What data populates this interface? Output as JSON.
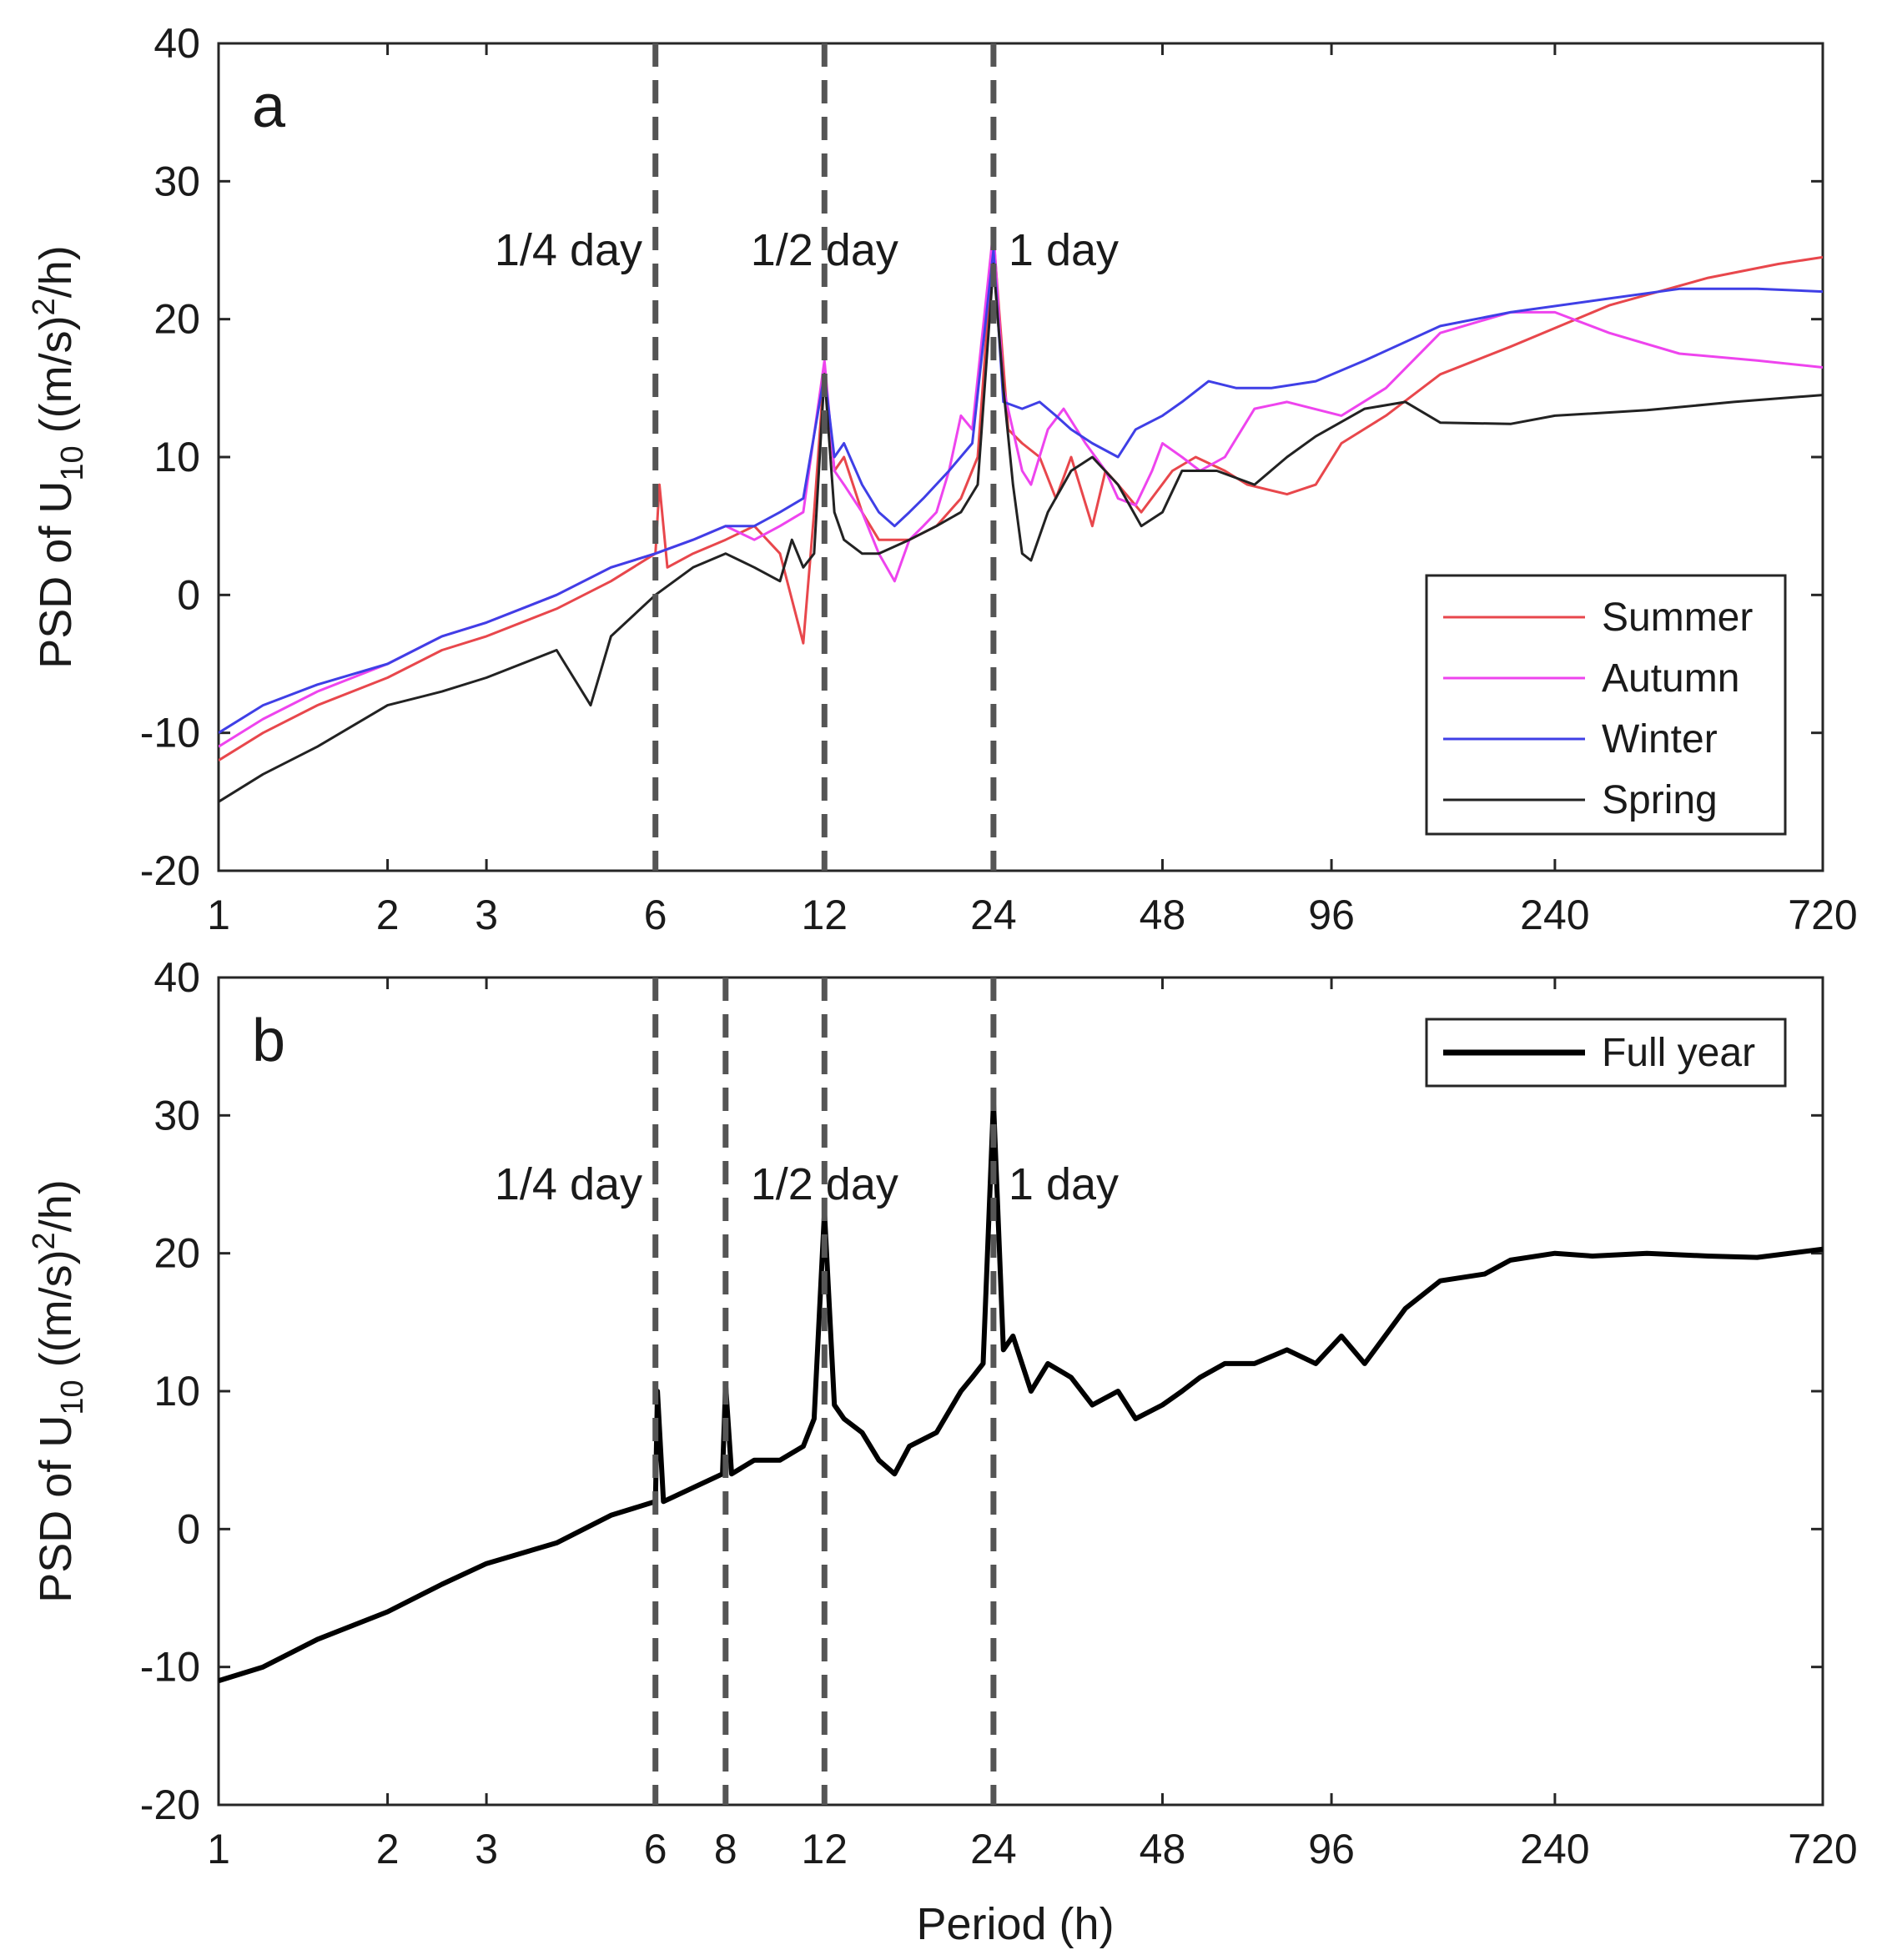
{
  "figure": {
    "xlabel": "Period (h)",
    "ylabel_main": "PSD of U",
    "ylabel_sub": "10",
    "ylabel_mid": " ((m/s)",
    "ylabel_sup": "2",
    "ylabel_end": "/h)"
  },
  "chart_data": [
    {
      "type": "line",
      "panel_label": "a",
      "x_scale": "log",
      "xlim": [
        1,
        720
      ],
      "ylim": [
        -20,
        40
      ],
      "xticks": [
        1,
        2,
        3,
        6,
        12,
        24,
        48,
        96,
        240,
        720
      ],
      "yticks": [
        -20,
        -10,
        0,
        10,
        20,
        30,
        40
      ],
      "xlabel": "Period (h)",
      "ylabel": "PSD of U10 ((m/s)^2/h)",
      "legend_position": "lower-right",
      "vlines": [
        6,
        12,
        24
      ],
      "annotations": [
        {
          "text": "1/4 day",
          "x": 4.2,
          "y": 25
        },
        {
          "text": "1/2 day",
          "x": 12,
          "y": 25
        },
        {
          "text": "1 day",
          "x": 32,
          "y": 25
        }
      ],
      "series": [
        {
          "name": "Summer",
          "color": "#e8474c",
          "points": [
            [
              1,
              -12
            ],
            [
              1.2,
              -10
            ],
            [
              1.5,
              -8
            ],
            [
              2,
              -6
            ],
            [
              2.5,
              -4
            ],
            [
              3,
              -3
            ],
            [
              4,
              -1
            ],
            [
              5,
              1
            ],
            [
              6,
              3
            ],
            [
              6.1,
              8
            ],
            [
              6.3,
              2
            ],
            [
              7,
              3
            ],
            [
              8,
              4
            ],
            [
              9,
              5
            ],
            [
              10,
              3
            ],
            [
              11,
              -3.5
            ],
            [
              11.5,
              6
            ],
            [
              12,
              16.5
            ],
            [
              12.5,
              9
            ],
            [
              13,
              10
            ],
            [
              14,
              6
            ],
            [
              15,
              4
            ],
            [
              17,
              4
            ],
            [
              19,
              5
            ],
            [
              21,
              7
            ],
            [
              22.5,
              10
            ],
            [
              24,
              26
            ],
            [
              25.5,
              12
            ],
            [
              27,
              11
            ],
            [
              29,
              10
            ],
            [
              31,
              7
            ],
            [
              33,
              10
            ],
            [
              36,
              5
            ],
            [
              38,
              9
            ],
            [
              40,
              8
            ],
            [
              44,
              6
            ],
            [
              50,
              9
            ],
            [
              55,
              10
            ],
            [
              62,
              9
            ],
            [
              68,
              8
            ],
            [
              80,
              7.3
            ],
            [
              90,
              8
            ],
            [
              100,
              11
            ],
            [
              120,
              13
            ],
            [
              150,
              16
            ],
            [
              200,
              18
            ],
            [
              300,
              21
            ],
            [
              450,
              23
            ],
            [
              600,
              24
            ],
            [
              720,
              24.5
            ]
          ]
        },
        {
          "name": "Autumn",
          "color": "#ee44ee",
          "points": [
            [
              1,
              -11
            ],
            [
              1.2,
              -9
            ],
            [
              1.5,
              -7
            ],
            [
              2,
              -5
            ],
            [
              2.5,
              -3
            ],
            [
              3,
              -2
            ],
            [
              4,
              0
            ],
            [
              5,
              2
            ],
            [
              6,
              3
            ],
            [
              7,
              4
            ],
            [
              8,
              5
            ],
            [
              9,
              4
            ],
            [
              10,
              5
            ],
            [
              11,
              6
            ],
            [
              12,
              17
            ],
            [
              12.5,
              9
            ],
            [
              13,
              8
            ],
            [
              14,
              6
            ],
            [
              15,
              3
            ],
            [
              16,
              1
            ],
            [
              17,
              4
            ],
            [
              18,
              5
            ],
            [
              19,
              6
            ],
            [
              20,
              9
            ],
            [
              21,
              13
            ],
            [
              22,
              12
            ],
            [
              24,
              26.5
            ],
            [
              25,
              15
            ],
            [
              27,
              9
            ],
            [
              28,
              8
            ],
            [
              30,
              12
            ],
            [
              32,
              13.5
            ],
            [
              35,
              11
            ],
            [
              38,
              9
            ],
            [
              40,
              7
            ],
            [
              43,
              6.5
            ],
            [
              46,
              9
            ],
            [
              48,
              11
            ],
            [
              52,
              10
            ],
            [
              56,
              9
            ],
            [
              62,
              10
            ],
            [
              70,
              13.5
            ],
            [
              80,
              14
            ],
            [
              100,
              13
            ],
            [
              120,
              15
            ],
            [
              150,
              19
            ],
            [
              200,
              20.5
            ],
            [
              240,
              20.5
            ],
            [
              300,
              19
            ],
            [
              400,
              17.5
            ],
            [
              550,
              17
            ],
            [
              720,
              16.5
            ]
          ]
        },
        {
          "name": "Winter",
          "color": "#3f3fe6",
          "points": [
            [
              1,
              -10
            ],
            [
              1.2,
              -8
            ],
            [
              1.5,
              -6.5
            ],
            [
              2,
              -5
            ],
            [
              2.5,
              -3
            ],
            [
              3,
              -2
            ],
            [
              4,
              0
            ],
            [
              5,
              2
            ],
            [
              6,
              3
            ],
            [
              7,
              4
            ],
            [
              8,
              5
            ],
            [
              9,
              5
            ],
            [
              10,
              6
            ],
            [
              11,
              7
            ],
            [
              12,
              16
            ],
            [
              12.5,
              10
            ],
            [
              13,
              11
            ],
            [
              14,
              8
            ],
            [
              15,
              6
            ],
            [
              16,
              5
            ],
            [
              17,
              6
            ],
            [
              18,
              7
            ],
            [
              20,
              9
            ],
            [
              22,
              11
            ],
            [
              24,
              25
            ],
            [
              25,
              14
            ],
            [
              27,
              13.5
            ],
            [
              29,
              14
            ],
            [
              31,
              13
            ],
            [
              33,
              12
            ],
            [
              36,
              11
            ],
            [
              40,
              10
            ],
            [
              43,
              12
            ],
            [
              48,
              13
            ],
            [
              52,
              14
            ],
            [
              58,
              15.5
            ],
            [
              65,
              15
            ],
            [
              75,
              15
            ],
            [
              90,
              15.5
            ],
            [
              110,
              17
            ],
            [
              150,
              19.5
            ],
            [
              200,
              20.5
            ],
            [
              300,
              21.5
            ],
            [
              400,
              22.2
            ],
            [
              550,
              22.2
            ],
            [
              720,
              22
            ]
          ]
        },
        {
          "name": "Spring",
          "color": "#222222",
          "points": [
            [
              1,
              -15
            ],
            [
              1.2,
              -13
            ],
            [
              1.5,
              -11
            ],
            [
              2,
              -8
            ],
            [
              2.5,
              -7
            ],
            [
              3,
              -6
            ],
            [
              4,
              -4
            ],
            [
              4.6,
              -8
            ],
            [
              5,
              -3
            ],
            [
              6,
              0
            ],
            [
              7,
              2
            ],
            [
              8,
              3
            ],
            [
              9,
              2
            ],
            [
              10,
              1
            ],
            [
              10.5,
              4
            ],
            [
              11,
              2
            ],
            [
              11.5,
              3
            ],
            [
              12,
              16
            ],
            [
              12.5,
              6
            ],
            [
              13,
              4
            ],
            [
              14,
              3
            ],
            [
              15,
              3
            ],
            [
              17,
              4
            ],
            [
              19,
              5
            ],
            [
              21,
              6
            ],
            [
              22.5,
              8
            ],
            [
              24,
              24
            ],
            [
              25,
              15
            ],
            [
              26,
              8
            ],
            [
              27,
              3
            ],
            [
              28,
              2.5
            ],
            [
              30,
              6
            ],
            [
              33,
              9
            ],
            [
              36,
              10
            ],
            [
              40,
              8
            ],
            [
              44,
              5
            ],
            [
              48,
              6
            ],
            [
              52,
              9
            ],
            [
              60,
              9
            ],
            [
              70,
              8
            ],
            [
              80,
              10
            ],
            [
              90,
              11.5
            ],
            [
              110,
              13.5
            ],
            [
              130,
              14
            ],
            [
              150,
              12.5
            ],
            [
              200,
              12.4
            ],
            [
              240,
              13
            ],
            [
              350,
              13.4
            ],
            [
              500,
              14
            ],
            [
              720,
              14.5
            ]
          ]
        }
      ]
    },
    {
      "type": "line",
      "panel_label": "b",
      "x_scale": "log",
      "xlim": [
        1,
        720
      ],
      "ylim": [
        -20,
        40
      ],
      "xticks": [
        1,
        2,
        3,
        6,
        8,
        12,
        24,
        48,
        96,
        240,
        720
      ],
      "yticks": [
        -20,
        -10,
        0,
        10,
        20,
        30,
        40
      ],
      "xlabel": "Period (h)",
      "ylabel": "PSD of U10 ((m/s)^2/h)",
      "legend_position": "top-right",
      "vlines": [
        6,
        8,
        12,
        24
      ],
      "annotations": [
        {
          "text": "1/4 day",
          "x": 4.2,
          "y": 25
        },
        {
          "text": "1/2 day",
          "x": 12,
          "y": 25
        },
        {
          "text": "1 day",
          "x": 32,
          "y": 25
        }
      ],
      "series": [
        {
          "name": "Full year",
          "color": "#000000",
          "points": [
            [
              1,
              -11
            ],
            [
              1.2,
              -10
            ],
            [
              1.5,
              -8
            ],
            [
              2,
              -6
            ],
            [
              2.5,
              -4
            ],
            [
              3,
              -2.5
            ],
            [
              4,
              -1
            ],
            [
              5,
              1
            ],
            [
              6,
              2
            ],
            [
              6.05,
              10
            ],
            [
              6.2,
              2
            ],
            [
              7,
              3
            ],
            [
              7.9,
              4
            ],
            [
              8,
              10.5
            ],
            [
              8.2,
              4
            ],
            [
              9,
              5
            ],
            [
              10,
              5
            ],
            [
              11,
              6
            ],
            [
              11.5,
              8
            ],
            [
              12,
              23
            ],
            [
              12.5,
              9
            ],
            [
              13,
              8
            ],
            [
              14,
              7
            ],
            [
              15,
              5
            ],
            [
              16,
              4
            ],
            [
              17,
              6
            ],
            [
              19,
              7
            ],
            [
              21,
              10
            ],
            [
              22,
              11
            ],
            [
              23,
              12
            ],
            [
              24,
              31
            ],
            [
              25,
              13
            ],
            [
              26,
              14
            ],
            [
              28,
              10
            ],
            [
              30,
              12
            ],
            [
              33,
              11
            ],
            [
              36,
              9
            ],
            [
              40,
              10
            ],
            [
              43,
              8
            ],
            [
              48,
              9
            ],
            [
              52,
              10
            ],
            [
              56,
              11
            ],
            [
              62,
              12
            ],
            [
              70,
              12
            ],
            [
              80,
              13
            ],
            [
              90,
              12
            ],
            [
              100,
              14
            ],
            [
              110,
              12
            ],
            [
              130,
              16
            ],
            [
              150,
              18
            ],
            [
              180,
              18.5
            ],
            [
              200,
              19.5
            ],
            [
              240,
              20
            ],
            [
              280,
              19.8
            ],
            [
              350,
              20
            ],
            [
              450,
              19.8
            ],
            [
              550,
              19.7
            ],
            [
              720,
              20.3
            ]
          ]
        }
      ]
    }
  ]
}
